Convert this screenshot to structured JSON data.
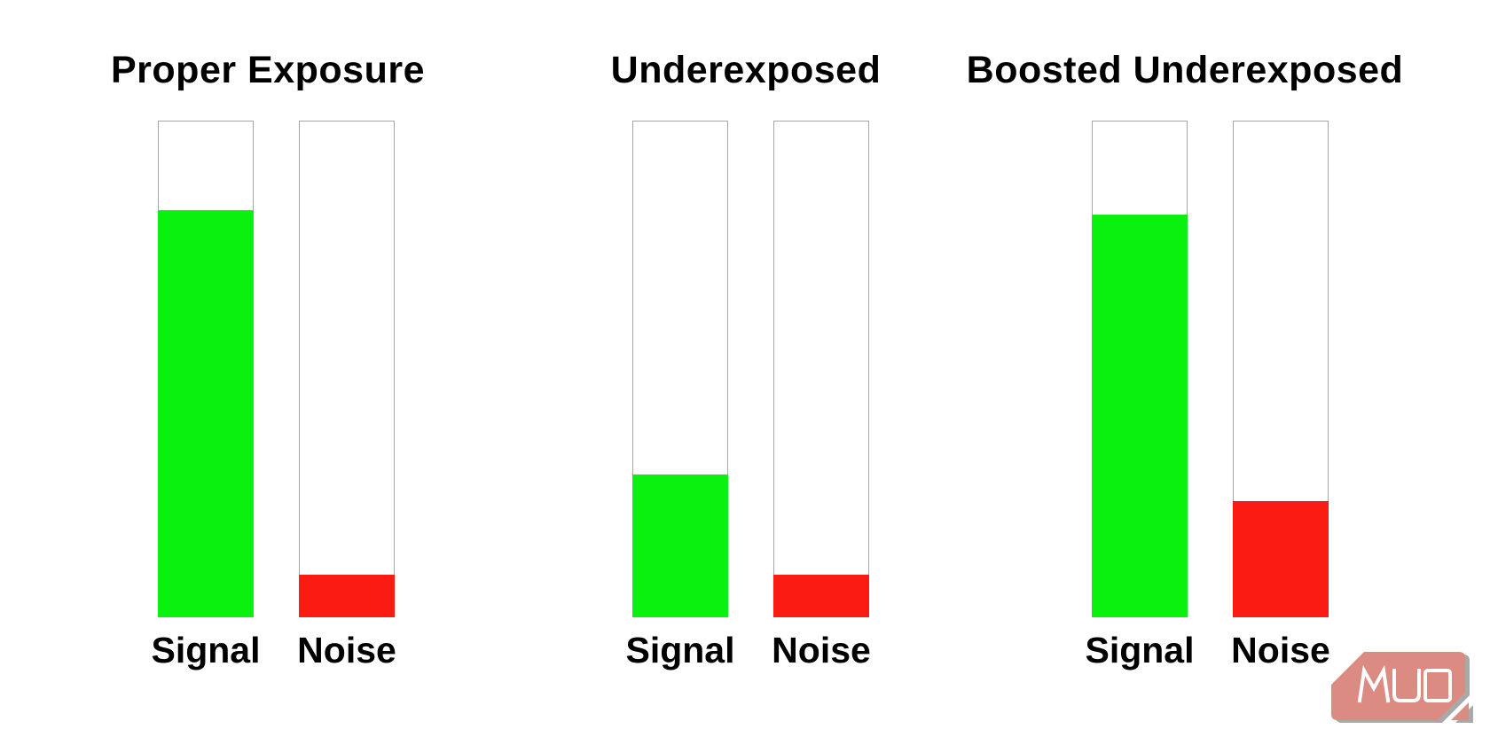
{
  "page": {
    "background": "#ffffff"
  },
  "colors": {
    "signal_green": "#0af00f",
    "noise_red": "#fa1b12",
    "bar_border": "#a6a6a6",
    "title_text": "#000000",
    "logo_fill": "#dc8b83",
    "logo_shadow": "#a9a9a9",
    "logo_text_color": "#ffffff"
  },
  "chart_data": {
    "type": "bar",
    "description": "Signal vs noise level comparison for three exposure scenarios; fill heights read as percent of the full tube height.",
    "unit": "% of tube height",
    "ylim": [
      0,
      100
    ],
    "grid": false,
    "legend": "none",
    "groups": [
      {
        "title": "Proper Exposure",
        "bars": [
          {
            "label": "Signal",
            "value_pct": 82.3,
            "color": "#0af00f"
          },
          {
            "label": "Noise",
            "value_pct": 8.6,
            "color": "#fa1b12"
          }
        ]
      },
      {
        "title": "Underexposed",
        "bars": [
          {
            "label": "Signal",
            "value_pct": 28.8,
            "color": "#0af00f"
          },
          {
            "label": "Noise",
            "value_pct": 8.6,
            "color": "#fa1b12"
          }
        ]
      },
      {
        "title": "Boosted Underexposed",
        "bars": [
          {
            "label": "Signal",
            "value_pct": 81.4,
            "color": "#0af00f"
          },
          {
            "label": "Noise",
            "value_pct": 23.4,
            "color": "#fa1b12"
          }
        ]
      }
    ]
  },
  "logo": {
    "text": "MUO"
  }
}
